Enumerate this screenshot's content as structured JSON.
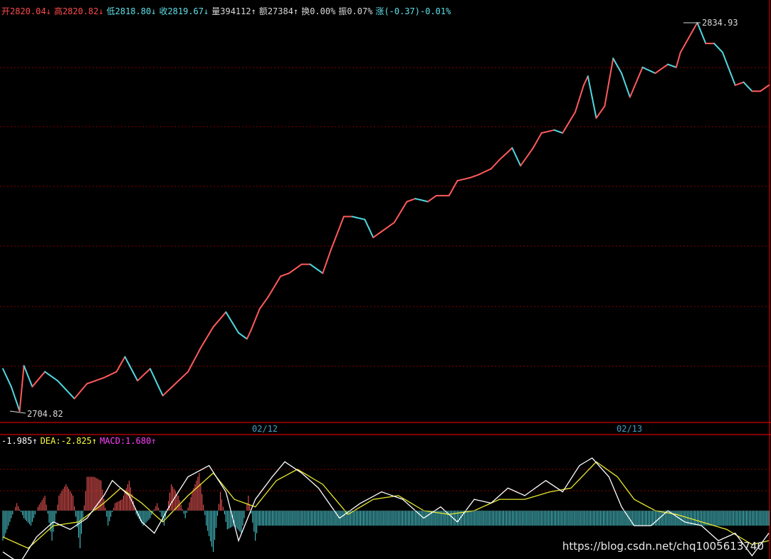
{
  "header": {
    "items": [
      {
        "text": "开2820.04↓",
        "color": "#ff4a4a"
      },
      {
        "text": "高2820.82↓",
        "color": "#ff4a4a"
      },
      {
        "text": "低2818.80↓",
        "color": "#5fe0e8"
      },
      {
        "text": "收2819.67↓",
        "color": "#5fe0e8"
      },
      {
        "text": "量394112↑",
        "color": "#d8d8d8"
      },
      {
        "text": "额27384↑",
        "color": "#d8d8d8"
      },
      {
        "text": "换0.00%",
        "color": "#d8d8d8"
      },
      {
        "text": "振0.07%",
        "color": "#d8d8d8"
      },
      {
        "text": "涨(-0.37)-0.01%",
        "color": "#5fe0e8"
      }
    ]
  },
  "macd_header": {
    "items": [
      {
        "text": "-1.985↑",
        "color": "#ffffff"
      },
      {
        "text": "DEA:-2.825↑",
        "color": "#ffff40"
      },
      {
        "text": "MACD:1.680↑",
        "color": "#ff40ff"
      }
    ]
  },
  "annotations": {
    "high": "2834.93",
    "low": "2704.82"
  },
  "date_labels": [
    "02/12",
    "02/13"
  ],
  "watermark": "https://blog.csdn.net/chq1005613740",
  "colors": {
    "up": "#ff5a5a",
    "down": "#4fd8e0",
    "dif": "#ffffff",
    "dea": "#e8e830",
    "axis": "#aa0000",
    "grid": "#880000",
    "date": "#3fa0c8"
  },
  "chart_data": {
    "type": "line",
    "title": "",
    "price_series": {
      "name": "",
      "ylim": [
        2704.82,
        2834.93
      ],
      "anchors": [
        [
          0,
          2719
        ],
        [
          2,
          2713
        ],
        [
          4,
          2704.82
        ],
        [
          5,
          2720
        ],
        [
          7,
          2713
        ],
        [
          10,
          2718
        ],
        [
          13,
          2715
        ],
        [
          17,
          2709
        ],
        [
          20,
          2714
        ],
        [
          24,
          2716
        ],
        [
          27,
          2718
        ],
        [
          29,
          2723
        ],
        [
          32,
          2715
        ],
        [
          35,
          2719
        ],
        [
          38,
          2710
        ],
        [
          41,
          2714
        ],
        [
          44,
          2718
        ],
        [
          47,
          2726
        ],
        [
          50,
          2733
        ],
        [
          53,
          2738
        ],
        [
          56,
          2731
        ],
        [
          58,
          2729
        ],
        [
          59,
          2732
        ],
        [
          61,
          2739
        ],
        [
          63,
          2743
        ],
        [
          66,
          2750
        ],
        [
          68,
          2751
        ],
        [
          71,
          2754
        ],
        [
          73,
          2754
        ],
        [
          76,
          2751
        ],
        [
          78,
          2759
        ],
        [
          81,
          2770
        ],
        [
          83,
          2770
        ],
        [
          86,
          2769
        ],
        [
          88,
          2763
        ],
        [
          91,
          2766
        ],
        [
          93,
          2768
        ],
        [
          96,
          2775
        ],
        [
          98,
          2776
        ],
        [
          101,
          2775
        ],
        [
          103,
          2777
        ],
        [
          106,
          2777
        ],
        [
          108,
          2782
        ],
        [
          111,
          2783
        ],
        [
          113,
          2784
        ],
        [
          116,
          2786
        ],
        [
          118,
          2789
        ],
        [
          121,
          2793
        ],
        [
          123,
          2787
        ],
        [
          126,
          2793
        ],
        [
          128,
          2798
        ],
        [
          131,
          2799
        ],
        [
          133,
          2798
        ],
        [
          136,
          2805
        ],
        [
          138,
          2814
        ],
        [
          139,
          2817
        ],
        [
          141,
          2803
        ],
        [
          143,
          2807
        ],
        [
          145,
          2823
        ],
        [
          147,
          2818
        ],
        [
          149,
          2810
        ],
        [
          152,
          2820
        ],
        [
          155,
          2818
        ],
        [
          158,
          2821
        ],
        [
          160,
          2820
        ],
        [
          161,
          2825
        ],
        [
          163,
          2830
        ],
        [
          165,
          2834.93
        ],
        [
          167,
          2828
        ],
        [
          169,
          2828
        ],
        [
          171,
          2825
        ],
        [
          174,
          2814
        ],
        [
          176,
          2815
        ],
        [
          178,
          2812
        ],
        [
          180,
          2812
        ],
        [
          182,
          2814
        ]
      ]
    },
    "macd": {
      "ylim": [
        -14,
        14
      ],
      "hist": [
        [
          0,
          -8
        ],
        [
          6,
          -2
        ],
        [
          10,
          2
        ],
        [
          15,
          -2
        ],
        [
          20,
          -4
        ],
        [
          25,
          1
        ],
        [
          30,
          4
        ],
        [
          35,
          -8
        ],
        [
          40,
          4
        ],
        [
          45,
          7
        ],
        [
          50,
          4
        ],
        [
          55,
          -10
        ],
        [
          60,
          9
        ],
        [
          65,
          9
        ],
        [
          70,
          8
        ],
        [
          75,
          -4
        ],
        [
          80,
          2
        ],
        [
          85,
          3
        ],
        [
          90,
          8
        ],
        [
          95,
          -1
        ],
        [
          100,
          -4
        ],
        [
          105,
          -2
        ],
        [
          110,
          2
        ],
        [
          115,
          -4
        ],
        [
          120,
          7
        ],
        [
          125,
          4
        ],
        [
          130,
          -2
        ],
        [
          135,
          5
        ],
        [
          140,
          10
        ],
        [
          145,
          -4
        ],
        [
          150,
          -11
        ],
        [
          155,
          5
        ],
        [
          160,
          -5
        ],
        [
          165,
          -4
        ],
        [
          170,
          -6
        ],
        [
          175,
          4
        ],
        [
          180,
          -8
        ],
        [
          182,
          -4
        ]
      ],
      "dif": [
        [
          0,
          -11
        ],
        [
          4,
          -14
        ],
        [
          8,
          -7
        ],
        [
          12,
          -3
        ],
        [
          16,
          -5
        ],
        [
          20,
          -2
        ],
        [
          24,
          4
        ],
        [
          26,
          8
        ],
        [
          30,
          4
        ],
        [
          33,
          -3
        ],
        [
          36,
          -6
        ],
        [
          40,
          2
        ],
        [
          44,
          9
        ],
        [
          49,
          12
        ],
        [
          53,
          5
        ],
        [
          56,
          -8
        ],
        [
          60,
          3
        ],
        [
          64,
          9
        ],
        [
          67,
          13
        ],
        [
          71,
          10
        ],
        [
          75,
          6
        ],
        [
          80,
          -2
        ],
        [
          85,
          2
        ],
        [
          90,
          5
        ],
        [
          95,
          3
        ],
        [
          100,
          -2
        ],
        [
          104,
          1
        ],
        [
          108,
          -3
        ],
        [
          112,
          3
        ],
        [
          116,
          2
        ],
        [
          120,
          6
        ],
        [
          124,
          4
        ],
        [
          129,
          8
        ],
        [
          133,
          5
        ],
        [
          137,
          12
        ],
        [
          140,
          14
        ],
        [
          144,
          9
        ],
        [
          147,
          1
        ],
        [
          150,
          -4
        ],
        [
          154,
          -4
        ],
        [
          158,
          0
        ],
        [
          162,
          -3
        ],
        [
          166,
          -4
        ],
        [
          170,
          -8
        ],
        [
          174,
          -6
        ],
        [
          178,
          -12
        ],
        [
          182,
          -6
        ]
      ],
      "dea": [
        [
          0,
          -7
        ],
        [
          6,
          -10
        ],
        [
          12,
          -4
        ],
        [
          18,
          -3
        ],
        [
          24,
          2
        ],
        [
          28,
          6
        ],
        [
          33,
          2
        ],
        [
          38,
          -3
        ],
        [
          44,
          4
        ],
        [
          50,
          10
        ],
        [
          55,
          3
        ],
        [
          60,
          1
        ],
        [
          65,
          8
        ],
        [
          70,
          11
        ],
        [
          76,
          7
        ],
        [
          82,
          -1
        ],
        [
          88,
          3
        ],
        [
          94,
          4
        ],
        [
          100,
          0
        ],
        [
          106,
          -1
        ],
        [
          112,
          0
        ],
        [
          118,
          3
        ],
        [
          124,
          3
        ],
        [
          130,
          5
        ],
        [
          135,
          6
        ],
        [
          141,
          13
        ],
        [
          146,
          9
        ],
        [
          150,
          3
        ],
        [
          155,
          0
        ],
        [
          160,
          -1
        ],
        [
          166,
          -3
        ],
        [
          172,
          -5
        ],
        [
          178,
          -9
        ],
        [
          182,
          -8
        ]
      ]
    }
  }
}
